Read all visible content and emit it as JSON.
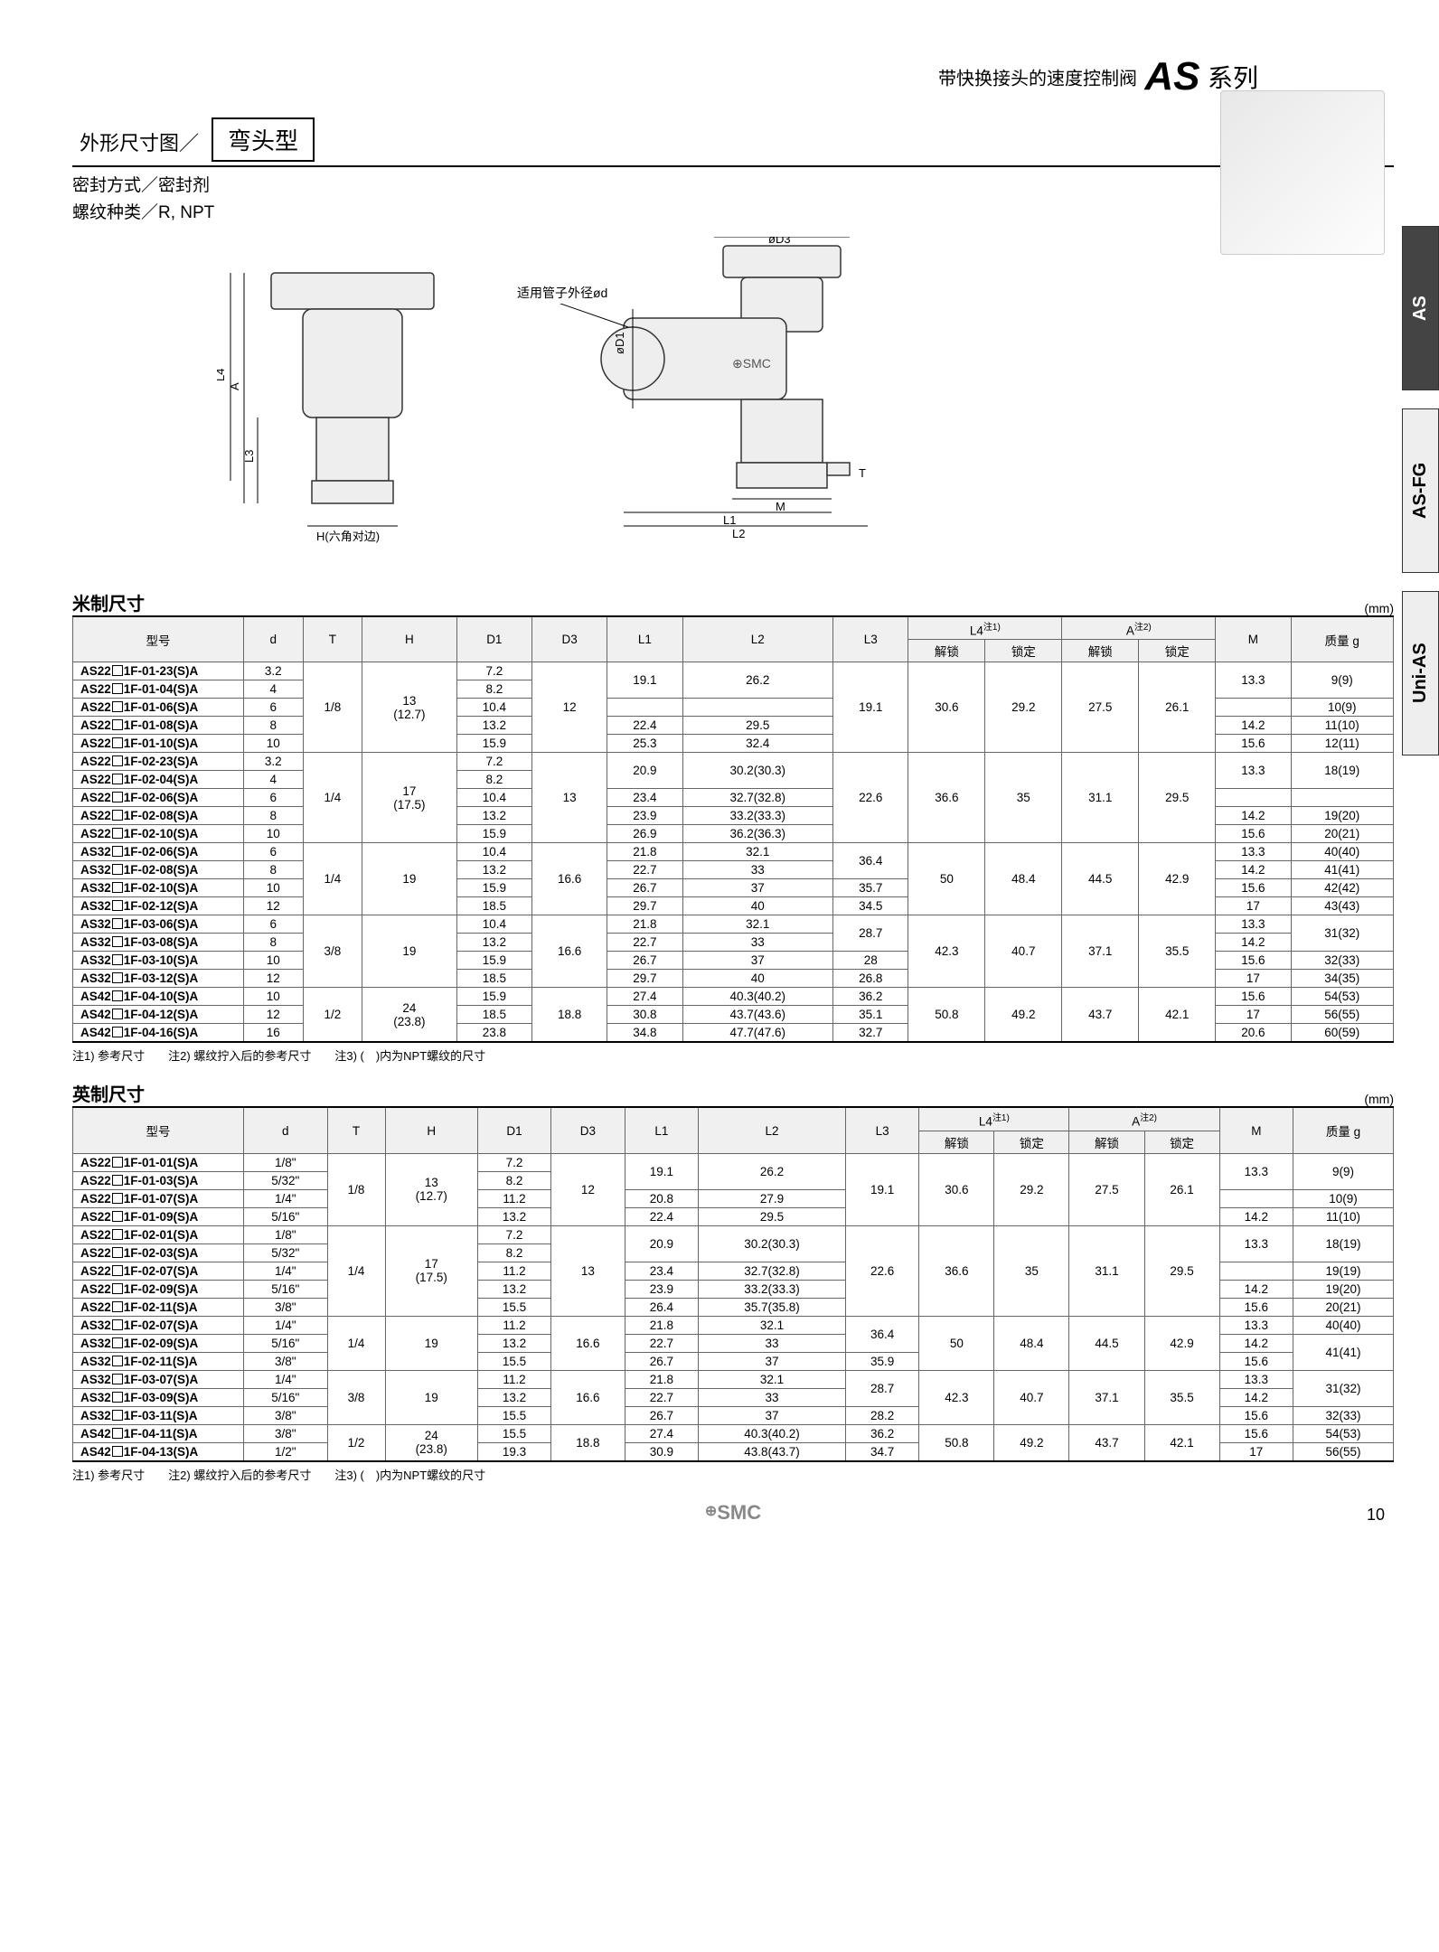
{
  "header": {
    "prefix": "带快换接头的速度控制阀",
    "brand": "AS",
    "suffix": "系列"
  },
  "section": {
    "label": "外形尺寸图／",
    "box": "弯头型",
    "sub1": "密封方式／密封剂",
    "sub2": "螺纹种类／R, NPT"
  },
  "diagram": {
    "tube_label": "适用管子外径ød",
    "h_label": "H(六角对边)",
    "dims": [
      "A",
      "L4",
      "L3",
      "øD1",
      "øD3",
      "M",
      "T",
      "L1",
      "L2"
    ]
  },
  "side_tabs": [
    "AS",
    "AS-FG",
    "Uni-AS"
  ],
  "table_unit": "(mm)",
  "table_header": {
    "model": "型号",
    "cols": [
      "d",
      "T",
      "H",
      "D1",
      "D3",
      "L1",
      "L2",
      "L3"
    ],
    "l4": "L4",
    "l4_note": "注1)",
    "a": "A",
    "a_note": "注2)",
    "m": "M",
    "mass": "质量 g",
    "unlock": "解锁",
    "lock": "锁定"
  },
  "metric": {
    "title": "米制尺寸",
    "groups": [
      {
        "T": "1/8",
        "H": "13\n(12.7)",
        "D3": "12",
        "L3": "19.1",
        "L4u": "30.6",
        "L4l": "29.2",
        "Au": "27.5",
        "Al": "26.1",
        "rows": [
          {
            "model": "AS22□1F-01-23(S)A",
            "d": "3.2",
            "D1": "7.2",
            "L1": "19.1",
            "L2": "26.2",
            "M": "13.3",
            "mass": "9(9)",
            "l12span": 2,
            "mspan": 2,
            "massspan": 2
          },
          {
            "model": "AS22□1F-01-04(S)A",
            "d": "4",
            "D1": "8.2"
          },
          {
            "model": "AS22□1F-01-06(S)A",
            "d": "6",
            "D1": "10.4",
            "L1": "",
            "L2": "",
            "M": "",
            "mass": "10(9)"
          },
          {
            "model": "AS22□1F-01-08(S)A",
            "d": "8",
            "D1": "13.2",
            "L1": "22.4",
            "L2": "29.5",
            "M": "14.2",
            "mass": "11(10)"
          },
          {
            "model": "AS22□1F-01-10(S)A",
            "d": "10",
            "D1": "15.9",
            "L1": "25.3",
            "L2": "32.4",
            "M": "15.6",
            "mass": "12(11)"
          }
        ]
      },
      {
        "T": "1/4",
        "H": "17\n(17.5)",
        "D3": "13",
        "L3": "22.6",
        "L4u": "36.6",
        "L4l": "35",
        "Au": "31.1",
        "Al": "29.5",
        "rows": [
          {
            "model": "AS22□1F-02-23(S)A",
            "d": "3.2",
            "D1": "7.2",
            "L1": "20.9",
            "L2": "30.2(30.3)",
            "M": "13.3",
            "mass": "18(19)",
            "l12span": 2,
            "mspan": 2,
            "massspan": 2
          },
          {
            "model": "AS22□1F-02-04(S)A",
            "d": "4",
            "D1": "8.2"
          },
          {
            "model": "AS22□1F-02-06(S)A",
            "d": "6",
            "D1": "10.4",
            "L1": "23.4",
            "L2": "32.7(32.8)",
            "M": "",
            "mass": ""
          },
          {
            "model": "AS22□1F-02-08(S)A",
            "d": "8",
            "D1": "13.2",
            "L1": "23.9",
            "L2": "33.2(33.3)",
            "M": "14.2",
            "mass": "19(20)"
          },
          {
            "model": "AS22□1F-02-10(S)A",
            "d": "10",
            "D1": "15.9",
            "L1": "26.9",
            "L2": "36.2(36.3)",
            "M": "15.6",
            "mass": "20(21)"
          }
        ]
      },
      {
        "T": "1/4",
        "H": "19",
        "D3": "16.6",
        "L4u": "50",
        "L4l": "48.4",
        "Au": "44.5",
        "Al": "42.9",
        "rows": [
          {
            "model": "AS32□1F-02-06(S)A",
            "d": "6",
            "D1": "10.4",
            "L1": "21.8",
            "L2": "32.1",
            "L3": "36.4",
            "l3span": 2,
            "M": "13.3",
            "mass": "40(40)"
          },
          {
            "model": "AS32□1F-02-08(S)A",
            "d": "8",
            "D1": "13.2",
            "L1": "22.7",
            "L2": "33",
            "M": "14.2",
            "mass": "41(41)"
          },
          {
            "model": "AS32□1F-02-10(S)A",
            "d": "10",
            "D1": "15.9",
            "L1": "26.7",
            "L2": "37",
            "L3": "35.7",
            "M": "15.6",
            "mass": "42(42)"
          },
          {
            "model": "AS32□1F-02-12(S)A",
            "d": "12",
            "D1": "18.5",
            "L1": "29.7",
            "L2": "40",
            "L3": "34.5",
            "M": "17",
            "mass": "43(43)"
          }
        ]
      },
      {
        "T": "3/8",
        "H": "19",
        "D3": "16.6",
        "L4u": "42.3",
        "L4l": "40.7",
        "Au": "37.1",
        "Al": "35.5",
        "rows": [
          {
            "model": "AS32□1F-03-06(S)A",
            "d": "6",
            "D1": "10.4",
            "L1": "21.8",
            "L2": "32.1",
            "L3": "28.7",
            "l3span": 2,
            "M": "13.3",
            "mass": "31(32)",
            "massspan": 2
          },
          {
            "model": "AS32□1F-03-08(S)A",
            "d": "8",
            "D1": "13.2",
            "L1": "22.7",
            "L2": "33",
            "M": "14.2"
          },
          {
            "model": "AS32□1F-03-10(S)A",
            "d": "10",
            "D1": "15.9",
            "L1": "26.7",
            "L2": "37",
            "L3": "28",
            "M": "15.6",
            "mass": "32(33)"
          },
          {
            "model": "AS32□1F-03-12(S)A",
            "d": "12",
            "D1": "18.5",
            "L1": "29.7",
            "L2": "40",
            "L3": "26.8",
            "M": "17",
            "mass": "34(35)"
          }
        ]
      },
      {
        "T": "1/2",
        "H": "24\n(23.8)",
        "D3": "18.8",
        "L4u": "50.8",
        "L4l": "49.2",
        "Au": "43.7",
        "Al": "42.1",
        "rows": [
          {
            "model": "AS42□1F-04-10(S)A",
            "d": "10",
            "D1": "15.9",
            "L1": "27.4",
            "L2": "40.3(40.2)",
            "L3": "36.2",
            "M": "15.6",
            "mass": "54(53)"
          },
          {
            "model": "AS42□1F-04-12(S)A",
            "d": "12",
            "D1": "18.5",
            "L1": "30.8",
            "L2": "43.7(43.6)",
            "L3": "35.1",
            "M": "17",
            "mass": "56(55)"
          },
          {
            "model": "AS42□1F-04-16(S)A",
            "d": "16",
            "D1": "23.8",
            "L1": "34.8",
            "L2": "47.7(47.6)",
            "L3": "32.7",
            "M": "20.6",
            "mass": "60(59)"
          }
        ]
      }
    ]
  },
  "imperial": {
    "title": "英制尺寸",
    "groups": [
      {
        "T": "1/8",
        "H": "13\n(12.7)",
        "D3": "12",
        "L3": "19.1",
        "L4u": "30.6",
        "L4l": "29.2",
        "Au": "27.5",
        "Al": "26.1",
        "rows": [
          {
            "model": "AS22□1F-01-01(S)A",
            "d": "1/8\"",
            "D1": "7.2",
            "L1": "19.1",
            "L2": "26.2",
            "M": "13.3",
            "mass": "9(9)",
            "l12span": 2,
            "mspan": 2,
            "massspan": 2
          },
          {
            "model": "AS22□1F-01-03(S)A",
            "d": "5/32\"",
            "D1": "8.2"
          },
          {
            "model": "AS22□1F-01-07(S)A",
            "d": "1/4\"",
            "D1": "11.2",
            "L1": "20.8",
            "L2": "27.9",
            "M": "",
            "mass": "10(9)"
          },
          {
            "model": "AS22□1F-01-09(S)A",
            "d": "5/16\"",
            "D1": "13.2",
            "L1": "22.4",
            "L2": "29.5",
            "M": "14.2",
            "mass": "11(10)"
          }
        ]
      },
      {
        "T": "1/4",
        "H": "17\n(17.5)",
        "D3": "13",
        "L3": "22.6",
        "L4u": "36.6",
        "L4l": "35",
        "Au": "31.1",
        "Al": "29.5",
        "rows": [
          {
            "model": "AS22□1F-02-01(S)A",
            "d": "1/8\"",
            "D1": "7.2",
            "L1": "20.9",
            "L2": "30.2(30.3)",
            "M": "13.3",
            "mass": "18(19)",
            "l12span": 2,
            "mspan": 2,
            "massspan": 2
          },
          {
            "model": "AS22□1F-02-03(S)A",
            "d": "5/32\"",
            "D1": "8.2"
          },
          {
            "model": "AS22□1F-02-07(S)A",
            "d": "1/4\"",
            "D1": "11.2",
            "L1": "23.4",
            "L2": "32.7(32.8)",
            "M": "",
            "mass": "19(19)"
          },
          {
            "model": "AS22□1F-02-09(S)A",
            "d": "5/16\"",
            "D1": "13.2",
            "L1": "23.9",
            "L2": "33.2(33.3)",
            "M": "14.2",
            "mass": "19(20)"
          },
          {
            "model": "AS22□1F-02-11(S)A",
            "d": "3/8\"",
            "D1": "15.5",
            "L1": "26.4",
            "L2": "35.7(35.8)",
            "M": "15.6",
            "mass": "20(21)"
          }
        ]
      },
      {
        "T": "1/4",
        "H": "19",
        "D3": "16.6",
        "L4u": "50",
        "L4l": "48.4",
        "Au": "44.5",
        "Al": "42.9",
        "rows": [
          {
            "model": "AS32□1F-02-07(S)A",
            "d": "1/4\"",
            "D1": "11.2",
            "L1": "21.8",
            "L2": "32.1",
            "L3": "36.4",
            "l3span": 2,
            "M": "13.3",
            "mass": "40(40)"
          },
          {
            "model": "AS32□1F-02-09(S)A",
            "d": "5/16\"",
            "D1": "13.2",
            "L1": "22.7",
            "L2": "33",
            "M": "14.2",
            "mass": "41(41)",
            "massspan": 2
          },
          {
            "model": "AS32□1F-02-11(S)A",
            "d": "3/8\"",
            "D1": "15.5",
            "L1": "26.7",
            "L2": "37",
            "L3": "35.9",
            "M": "15.6"
          }
        ]
      },
      {
        "T": "3/8",
        "H": "19",
        "D3": "16.6",
        "L4u": "42.3",
        "L4l": "40.7",
        "Au": "37.1",
        "Al": "35.5",
        "rows": [
          {
            "model": "AS32□1F-03-07(S)A",
            "d": "1/4\"",
            "D1": "11.2",
            "L1": "21.8",
            "L2": "32.1",
            "L3": "28.7",
            "l3span": 2,
            "M": "13.3",
            "mass": "31(32)",
            "massspan": 2
          },
          {
            "model": "AS32□1F-03-09(S)A",
            "d": "5/16\"",
            "D1": "13.2",
            "L1": "22.7",
            "L2": "33",
            "M": "14.2"
          },
          {
            "model": "AS32□1F-03-11(S)A",
            "d": "3/8\"",
            "D1": "15.5",
            "L1": "26.7",
            "L2": "37",
            "L3": "28.2",
            "M": "15.6",
            "mass": "32(33)"
          }
        ]
      },
      {
        "T": "1/2",
        "H": "24\n(23.8)",
        "D3": "18.8",
        "L4u": "50.8",
        "L4l": "49.2",
        "Au": "43.7",
        "Al": "42.1",
        "rows": [
          {
            "model": "AS42□1F-04-11(S)A",
            "d": "3/8\"",
            "D1": "15.5",
            "L1": "27.4",
            "L2": "40.3(40.2)",
            "L3": "36.2",
            "M": "15.6",
            "mass": "54(53)"
          },
          {
            "model": "AS42□1F-04-13(S)A",
            "d": "1/2\"",
            "D1": "19.3",
            "L1": "30.9",
            "L2": "43.8(43.7)",
            "L3": "34.7",
            "M": "17",
            "mass": "56(55)"
          }
        ]
      }
    ]
  },
  "footnote": "注1) 参考尺寸　　注2) 螺纹拧入后的参考尺寸　　注3) (　)内为NPT螺纹的尺寸",
  "footer": "SMC",
  "pagenum": "10"
}
